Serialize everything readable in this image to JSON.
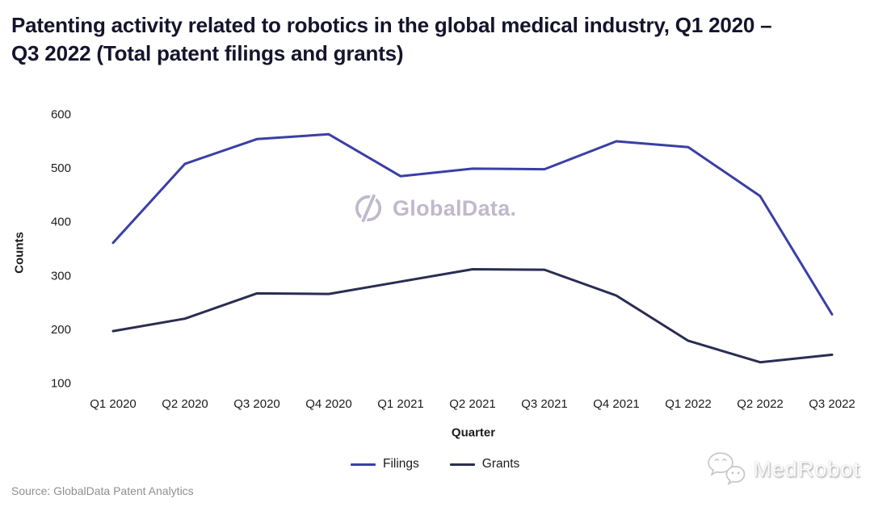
{
  "title": "Patenting activity related to robotics in the global medical industry, Q1 2020 – Q3 2022 (Total patent filings and grants)",
  "source": "Source: GlobalData Patent Analytics",
  "watermarks": {
    "center": {
      "icon": "globaldata-logo-icon",
      "text": "GlobalData.",
      "color": "#b5adc4"
    },
    "bottom_right": {
      "icon": "wechat-icon",
      "text": "MedRobot",
      "color": "#c8c8c8"
    }
  },
  "chart_data": {
    "type": "line",
    "title": "Patenting activity related to robotics in the global medical industry, Q1 2020 – Q3 2022 (Total patent filings and grants)",
    "xlabel": "Quarter",
    "ylabel": "Counts",
    "categories": [
      "Q1 2020",
      "Q2 2020",
      "Q3 2020",
      "Q4 2020",
      "Q1 2021",
      "Q2 2021",
      "Q3 2021",
      "Q4 2021",
      "Q1 2022",
      "Q2 2022",
      "Q3 2022"
    ],
    "yticks": [
      600,
      500,
      400,
      300,
      200,
      100
    ],
    "ylim": [
      100,
      600
    ],
    "grid": false,
    "legend_position": "bottom",
    "series": [
      {
        "name": "Filings",
        "color": "#3a3fa5",
        "values": [
          360,
          507,
          553,
          562,
          484,
          498,
          497,
          549,
          538,
          447,
          227
        ]
      },
      {
        "name": "Grants",
        "color": "#2a2d52",
        "values": [
          196,
          219,
          266,
          265,
          288,
          311,
          310,
          262,
          178,
          138,
          152
        ]
      }
    ]
  }
}
